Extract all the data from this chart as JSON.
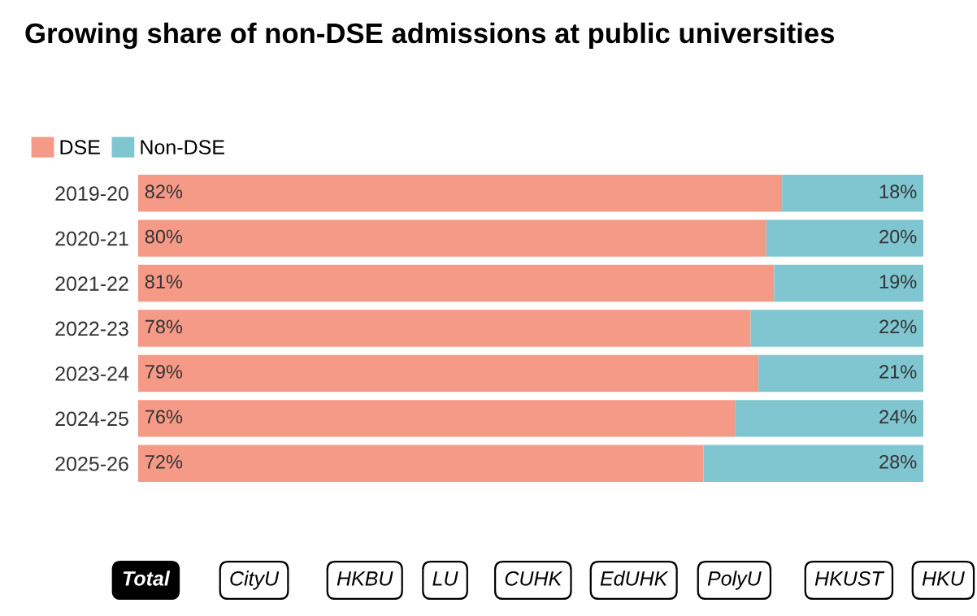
{
  "chart_data": {
    "type": "bar",
    "orientation": "horizontal",
    "stacked": true,
    "title": "Growing share of non-DSE admissions at public universities",
    "categories": [
      "2019-20",
      "2020-21",
      "2021-22",
      "2022-23",
      "2023-24",
      "2024-25",
      "2025-26"
    ],
    "series": [
      {
        "name": "DSE",
        "color": "#f59a87",
        "values": [
          82,
          80,
          81,
          78,
          79,
          76,
          72
        ],
        "value_labels": [
          "82%",
          "80%",
          "81%",
          "78%",
          "79%",
          "76%",
          "72%"
        ]
      },
      {
        "name": "Non-DSE",
        "color": "#7fc6d1",
        "values": [
          18,
          20,
          19,
          22,
          21,
          24,
          28
        ],
        "value_labels": [
          "18%",
          "20%",
          "19%",
          "22%",
          "21%",
          "24%",
          "28%"
        ]
      }
    ],
    "xlim": [
      0,
      100
    ],
    "tick_labels": "y",
    "legend": "top left",
    "grid": false,
    "annotations": [
      "Total",
      "CityU",
      "HKBU",
      "LU",
      "CUHK",
      "EdUHK",
      "PolyU",
      "HKUST",
      "HKU"
    ]
  }
}
